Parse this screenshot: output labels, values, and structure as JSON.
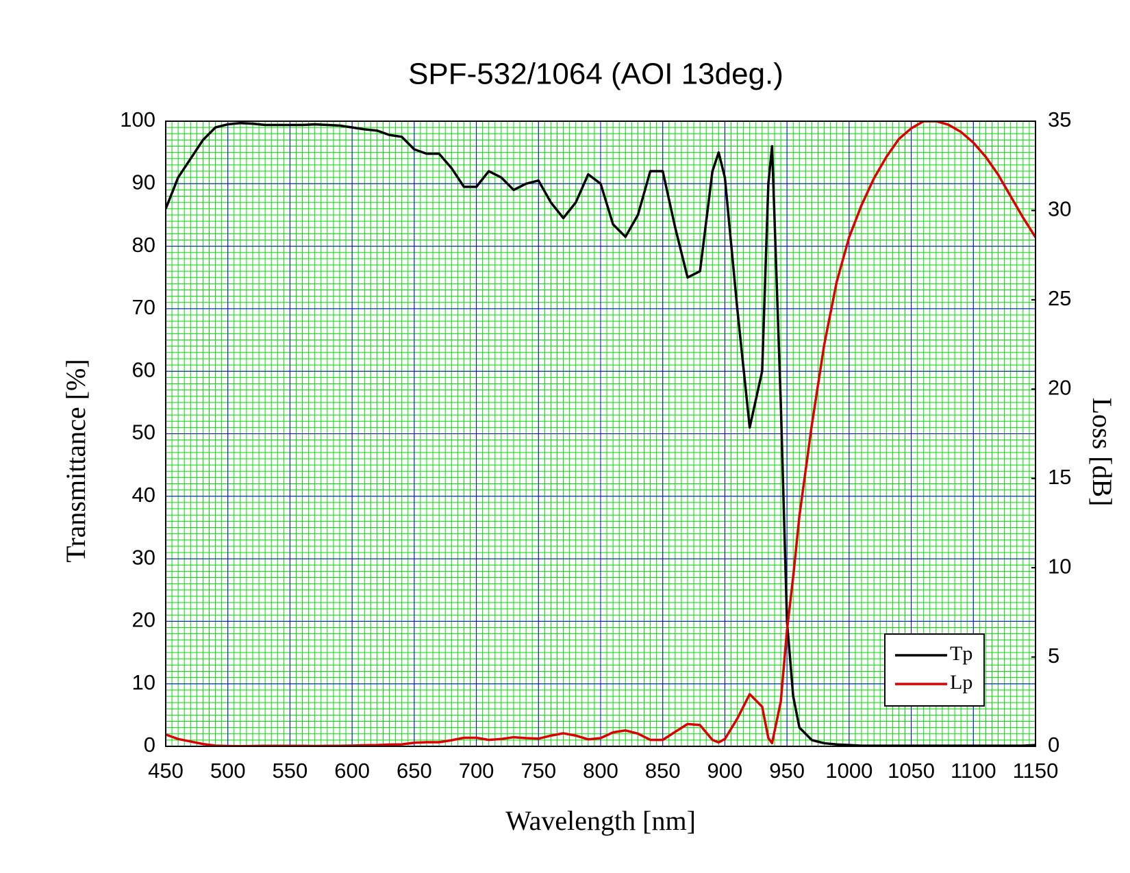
{
  "chart_data": {
    "type": "line",
    "title": "SPF-532/1064 (AOI 13deg.)",
    "x_label": "Wavelength [nm]",
    "y_label": "Transmittance [%]",
    "y2_label": "Loss [dB]",
    "x": [
      450,
      460,
      470,
      480,
      490,
      500,
      510,
      520,
      530,
      540,
      550,
      560,
      570,
      580,
      590,
      600,
      610,
      620,
      630,
      640,
      650,
      660,
      670,
      680,
      690,
      700,
      710,
      720,
      730,
      740,
      750,
      760,
      770,
      780,
      790,
      800,
      810,
      820,
      830,
      840,
      850,
      860,
      870,
      880,
      890,
      895,
      900,
      910,
      920,
      930,
      935,
      938,
      945,
      950,
      955,
      960,
      970,
      980,
      990,
      1000,
      1010,
      1020,
      1030,
      1040,
      1050,
      1060,
      1070,
      1080,
      1090,
      1100,
      1110,
      1120,
      1130,
      1140,
      1150
    ],
    "series": [
      {
        "name": "Tp",
        "color": "#000000",
        "axis": "y",
        "values": [
          86,
          91,
          94,
          97,
          99,
          99.5,
          99.7,
          99.6,
          99.4,
          99.4,
          99.4,
          99.4,
          99.5,
          99.4,
          99.3,
          99,
          98.7,
          98.5,
          97.8,
          97.5,
          95.5,
          94.8,
          94.8,
          92.5,
          89.5,
          89.5,
          92,
          91,
          89,
          90,
          90.5,
          87,
          84.5,
          87,
          91.5,
          90,
          83.5,
          81.5,
          85,
          92,
          92,
          83,
          75,
          76,
          92,
          95,
          91,
          70,
          51,
          60,
          90,
          96,
          55,
          20,
          8,
          3,
          1,
          0.5,
          0.3,
          0.2,
          0.1,
          0.1,
          0.1,
          0.1,
          0.1,
          0.1,
          0.1,
          0.1,
          0.1,
          0.1,
          0.1,
          0.1,
          0.1,
          0.1,
          0.2
        ]
      },
      {
        "name": "Lp",
        "color": "#dd0000",
        "axis": "y2",
        "values": [
          0.66,
          0.41,
          0.27,
          0.13,
          0.04,
          0.02,
          0.01,
          0.02,
          0.03,
          0.03,
          0.03,
          0.03,
          0.02,
          0.03,
          0.03,
          0.04,
          0.06,
          0.07,
          0.1,
          0.11,
          0.2,
          0.23,
          0.23,
          0.34,
          0.48,
          0.48,
          0.36,
          0.41,
          0.51,
          0.46,
          0.43,
          0.6,
          0.73,
          0.6,
          0.39,
          0.46,
          0.78,
          0.89,
          0.71,
          0.36,
          0.36,
          0.81,
          1.25,
          1.19,
          0.36,
          0.22,
          0.41,
          1.55,
          2.92,
          2.22,
          0.46,
          0.18,
          2.5,
          6.5,
          9.5,
          12.9,
          18,
          22.5,
          26,
          28.5,
          30.3,
          31.8,
          33,
          34,
          34.6,
          35,
          35,
          34.8,
          34.4,
          33.8,
          33,
          32,
          30.8,
          29.6,
          28.5
        ]
      }
    ],
    "xlim": [
      450,
      1150
    ],
    "xticks": [
      450,
      500,
      550,
      600,
      650,
      700,
      750,
      800,
      850,
      900,
      950,
      1000,
      1050,
      1100,
      1150
    ],
    "ylim": [
      0,
      100
    ],
    "yticks": [
      0,
      10,
      20,
      30,
      40,
      50,
      60,
      70,
      80,
      90,
      100
    ],
    "y2lim": [
      0,
      35
    ],
    "y2ticks": [
      0,
      5,
      10,
      15,
      20,
      25,
      30,
      35
    ],
    "x_minor_step": 5,
    "y_minor_step": 1,
    "grid": true,
    "grid_color": "#0000cc",
    "minor_grid_color": "#00dd00",
    "plot_background": "#ffffff",
    "legend": "lower right"
  }
}
